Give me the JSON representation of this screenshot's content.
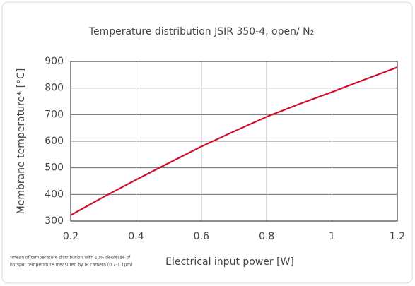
{
  "chart_data": {
    "type": "line",
    "title": "Temperature distribution JSIR 350-4, open/ N₂",
    "x_label": "Electrical input power [W]",
    "y_label": "Membrane temperature* [°C]",
    "footnote": [
      "*mean of temperature distribution with 10% decrease of",
      "hotspot temperature measured by IR camera (0.7-1.1µm)"
    ],
    "x": [
      0.2,
      0.3,
      0.4,
      0.5,
      0.6,
      0.7,
      0.8,
      0.9,
      1.0,
      1.1,
      1.2
    ],
    "series": [
      {
        "color": "#d0102a",
        "values": [
          322,
          390,
          455,
          518,
          580,
          637,
          692,
          740,
          785,
          832,
          878
        ]
      }
    ],
    "xlim": [
      0.2,
      1.2
    ],
    "xticks": [
      0.2,
      0.4,
      0.6,
      0.8,
      1,
      1.2
    ],
    "ylim": [
      300,
      900
    ],
    "yticks": [
      300,
      400,
      500,
      600,
      700,
      800,
      900
    ],
    "grid": true
  }
}
